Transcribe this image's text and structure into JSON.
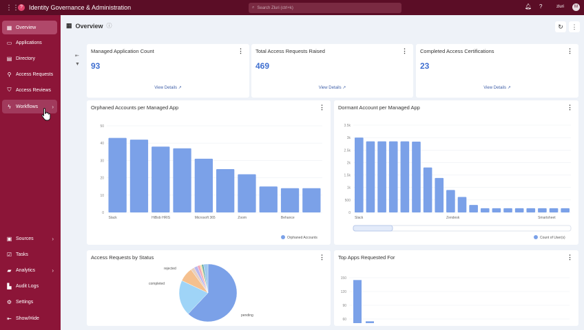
{
  "topbar": {
    "app_title": "Identity Governance & Administration",
    "search_placeholder": "Search Zluri (ctrl+k)",
    "user_label": "zluri",
    "avatar_initial": "M"
  },
  "sidebar": {
    "items": [
      {
        "label": "Overview",
        "icon": "grid-icon"
      },
      {
        "label": "Applications",
        "icon": "apps-icon"
      },
      {
        "label": "Directory",
        "icon": "directory-icon"
      },
      {
        "label": "Access Requests",
        "icon": "access-request-icon"
      },
      {
        "label": "Access Reviews",
        "icon": "shield-icon"
      },
      {
        "label": "Workflows",
        "icon": "bolt-icon"
      }
    ],
    "bottom_items": [
      {
        "label": "Sources",
        "icon": "sources-icon"
      },
      {
        "label": "Tasks",
        "icon": "tasks-icon"
      },
      {
        "label": "Analytics",
        "icon": "analytics-icon"
      },
      {
        "label": "Audit Logs",
        "icon": "audit-icon"
      },
      {
        "label": "Settings",
        "icon": "gear-icon"
      },
      {
        "label": "Show/Hide",
        "icon": "collapse-icon"
      }
    ]
  },
  "page": {
    "title": "Overview"
  },
  "stats": [
    {
      "title": "Managed Application Count",
      "value": "93",
      "link": "View Details"
    },
    {
      "title": "Total Access Requests Raised",
      "value": "469",
      "link": "View Details"
    },
    {
      "title": "Completed Access Certifications",
      "value": "23",
      "link": "View Details"
    }
  ],
  "colors": {
    "accent": "#7ba1e8",
    "sidebar": "#8c1538",
    "topbar": "#5b0d26"
  },
  "chart_data": [
    {
      "type": "bar",
      "title": "Orphaned Accounts per Managed App",
      "categories": [
        "Slack",
        "",
        "HiBob HRIS",
        "",
        "Microsoft 365",
        "",
        "Zoom",
        "",
        "Behance",
        ""
      ],
      "values": [
        43,
        42,
        38,
        37,
        31,
        25,
        22,
        15,
        14,
        14
      ],
      "yticks": [
        "0",
        "10",
        "20",
        "30",
        "40",
        "50"
      ],
      "ylim": [
        0,
        50
      ],
      "legend": "Orphaned Accounts",
      "legend_position": "bottom-right"
    },
    {
      "type": "bar",
      "title": "Dormant Account per Managed App",
      "categories": [
        "Slack",
        "",
        "",
        "",
        "",
        "",
        "",
        "",
        "Zendesk",
        "",
        "",
        "",
        "",
        "",
        "",
        "",
        "Smartsheet",
        "",
        ""
      ],
      "values": [
        3000,
        2850,
        2850,
        2850,
        2850,
        2840,
        1800,
        1380,
        900,
        620,
        300,
        170,
        170,
        170,
        170,
        170,
        170,
        170,
        170
      ],
      "yticks": [
        "0",
        "500",
        "1k",
        "1.5k",
        "2k",
        "2.5k",
        "3k",
        "3.5k"
      ],
      "ylim": [
        0,
        3500
      ],
      "legend": "Count of User(s)",
      "legend_position": "bottom-right"
    },
    {
      "type": "pie",
      "title": "Access Requests by Status",
      "labels": [
        "pending",
        "completed",
        "rejected",
        "",
        "",
        "",
        "",
        "",
        ""
      ],
      "values": [
        62,
        20,
        8,
        2,
        2,
        1.5,
        1,
        1,
        2.5
      ],
      "colors": [
        "#7ba1e8",
        "#9fd4f7",
        "#f5c08e",
        "#e8d0c0",
        "#b9b7ee",
        "#f3a9b8",
        "#f6e0a8",
        "#5fa8a0",
        "#9fc8ef"
      ],
      "shown_labels": [
        "rejected",
        "completed",
        "pending"
      ]
    },
    {
      "type": "bar",
      "title": "Top Apps Requested For",
      "values": [
        145,
        55
      ],
      "yticks": [
        "60",
        "90",
        "120",
        "150"
      ],
      "ylim": [
        60,
        150
      ]
    }
  ]
}
